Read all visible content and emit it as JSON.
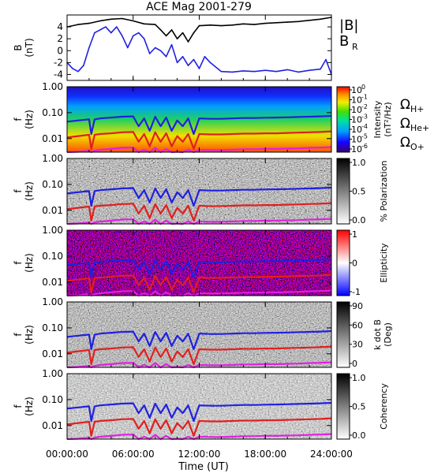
{
  "title": "ACE Mag 2001-279",
  "xaxis": {
    "label": "Time (UT)",
    "ticks": [
      "00:00:00",
      "06:00:00",
      "12:00:00",
      "18:00:00",
      "24:00:00"
    ],
    "tick_hours": [
      0,
      6,
      12,
      18,
      24
    ]
  },
  "freq_axis": {
    "ticks": [
      "1.00",
      "0.10",
      "0.01"
    ],
    "values": [
      1.0,
      0.1,
      0.01
    ]
  },
  "panels": [
    {
      "id": "b-field",
      "ylabel": "B",
      "yunit": "(nT)",
      "yrange": [
        -5,
        6
      ],
      "yticks": [
        "4",
        "2",
        "0",
        "-2",
        "-4"
      ],
      "ytick_values": [
        4,
        2,
        0,
        -2,
        -4
      ],
      "legend": [
        {
          "label": "|B|",
          "color": "#000000"
        },
        {
          "label": "B",
          "sub": "R",
          "color": "#2020e0"
        }
      ]
    },
    {
      "id": "intensity",
      "ylabel": "f",
      "yunit": "(Hz)",
      "colorbar": {
        "title": "Intensity",
        "unit": "(nT²/Hz)",
        "tick_base": "10",
        "tick_exponents": [
          "0",
          "-1",
          "-2",
          "-3",
          "-4",
          "-5",
          "-6"
        ]
      },
      "legend": [
        {
          "symbol": "Ω",
          "sub": "H+",
          "color": "#2020e0"
        },
        {
          "symbol": "Ω",
          "sub": "He+",
          "color": "#e02020"
        },
        {
          "symbol": "Ω",
          "sub": "O+",
          "color": "#e020e0"
        }
      ]
    },
    {
      "id": "polarization",
      "ylabel": "f",
      "yunit": "(Hz)",
      "colorbar": {
        "title": "% Polarization",
        "ticks": [
          "1.0",
          "0.5",
          "0.0"
        ]
      }
    },
    {
      "id": "ellipticity",
      "ylabel": "f",
      "yunit": "(Hz)",
      "colorbar": {
        "title": "Ellipticity",
        "ticks": [
          "1",
          "0",
          "-1"
        ]
      }
    },
    {
      "id": "kdotb",
      "ylabel": "f",
      "yunit": "(Hz)",
      "colorbar": {
        "title": "k dot B",
        "unit": "(Deg)",
        "ticks": [
          "90",
          "60",
          "30",
          "0"
        ]
      }
    },
    {
      "id": "coherency",
      "ylabel": "f",
      "yunit": "(Hz)",
      "colorbar": {
        "title": "Coherency",
        "ticks": [
          "1.0",
          "0.5",
          "0.0"
        ]
      }
    }
  ],
  "colors": {
    "btotal": "#000000",
    "bradial": "#2020e0",
    "h_gyro": "#2020e0",
    "he_gyro": "#e02020",
    "o_gyro": "#e020e0"
  },
  "chart_data": {
    "type": "line",
    "title": "ACE Mag 2001-279",
    "xlabel": "Time (UT)",
    "xlim": [
      0,
      24
    ],
    "series": [
      {
        "name": "|B|",
        "x": [
          0,
          1,
          2,
          3,
          4,
          5,
          6,
          7,
          8,
          8.5,
          9,
          9.5,
          10,
          10.5,
          11,
          11.5,
          12,
          13,
          14,
          15,
          16,
          17,
          18,
          19,
          20,
          21,
          22,
          23,
          24
        ],
        "values": [
          4.0,
          4.4,
          4.6,
          5.0,
          5.3,
          5.4,
          5.0,
          4.5,
          4.4,
          3.5,
          2.5,
          3.5,
          2.0,
          3.0,
          1.5,
          3.0,
          4.2,
          4.3,
          4.2,
          4.3,
          4.5,
          4.4,
          4.6,
          4.7,
          4.8,
          4.9,
          5.1,
          5.3,
          5.6
        ]
      },
      {
        "name": "B_R",
        "x": [
          0,
          0.5,
          1,
          1.5,
          2,
          2.5,
          3,
          3.5,
          4,
          4.5,
          5,
          5.5,
          6,
          6.5,
          7,
          7.5,
          8,
          8.5,
          9,
          9.5,
          10,
          10.5,
          11,
          11.5,
          12,
          12.5,
          13,
          14,
          15,
          16,
          17,
          18,
          19,
          20,
          21,
          22,
          23,
          23.5,
          24
        ],
        "values": [
          -2.0,
          -3.0,
          -3.5,
          -2.5,
          0.5,
          3.0,
          3.5,
          4.0,
          3.0,
          4.0,
          2.5,
          0.5,
          2.5,
          3.0,
          2.0,
          -0.5,
          0.5,
          0.0,
          -1.0,
          1.0,
          -2.0,
          -1.0,
          -2.5,
          -1.5,
          -3.0,
          -1.0,
          -2.0,
          -3.5,
          -3.6,
          -3.4,
          -3.5,
          -3.3,
          -3.5,
          -3.2,
          -3.6,
          -3.3,
          -3.1,
          -1.5,
          -4.0
        ]
      }
    ],
    "frequency_panels": {
      "ylim_hz": [
        0.003,
        1.0
      ],
      "yscale": "log",
      "gyrofrequency_series": [
        {
          "name": "H+",
          "x": [
            0,
            1,
            2,
            2.2,
            2.5,
            3,
            4,
            5,
            6,
            6.5,
            7,
            7.5,
            8,
            8.5,
            9,
            9.5,
            10,
            10.5,
            11,
            11.5,
            12,
            13,
            14,
            15,
            16,
            17,
            18,
            19,
            20,
            21,
            22,
            23,
            24
          ],
          "values": [
            0.045,
            0.05,
            0.055,
            0.015,
            0.055,
            0.06,
            0.065,
            0.07,
            0.072,
            0.03,
            0.06,
            0.02,
            0.07,
            0.03,
            0.065,
            0.02,
            0.05,
            0.03,
            0.06,
            0.015,
            0.06,
            0.058,
            0.058,
            0.06,
            0.062,
            0.062,
            0.064,
            0.065,
            0.066,
            0.068,
            0.07,
            0.072,
            0.075
          ]
        },
        {
          "name": "He+",
          "x": [
            0,
            1,
            2,
            2.2,
            2.5,
            3,
            4,
            5,
            6,
            6.5,
            7,
            7.5,
            8,
            8.5,
            9,
            9.5,
            10,
            10.5,
            11,
            11.5,
            12,
            13,
            14,
            15,
            16,
            17,
            18,
            19,
            20,
            21,
            22,
            23,
            24
          ],
          "values": [
            0.011,
            0.0125,
            0.014,
            0.004,
            0.014,
            0.015,
            0.016,
            0.0175,
            0.018,
            0.0075,
            0.015,
            0.005,
            0.0175,
            0.0075,
            0.016,
            0.005,
            0.0125,
            0.0075,
            0.015,
            0.004,
            0.015,
            0.0145,
            0.0145,
            0.015,
            0.0155,
            0.0155,
            0.016,
            0.016,
            0.0165,
            0.017,
            0.0175,
            0.018,
            0.019
          ]
        },
        {
          "name": "O+",
          "x": [
            0,
            1,
            2,
            2.2,
            2.5,
            3,
            4,
            5,
            6,
            6.5,
            7,
            7.5,
            8,
            8.5,
            9,
            9.5,
            10,
            10.5,
            11,
            11.5,
            12,
            13,
            14,
            15,
            16,
            17,
            18,
            19,
            20,
            21,
            22,
            23,
            24
          ],
          "values": [
            0.0028,
            0.0031,
            0.0034,
            0.001,
            0.0034,
            0.0037,
            0.004,
            0.0044,
            0.0045,
            0.0019,
            0.0037,
            0.0013,
            0.0044,
            0.0019,
            0.004,
            0.0013,
            0.0031,
            0.0019,
            0.0037,
            0.001,
            0.0037,
            0.0036,
            0.0036,
            0.0037,
            0.0039,
            0.0039,
            0.004,
            0.004,
            0.0041,
            0.0042,
            0.0044,
            0.0045,
            0.0047
          ]
        }
      ]
    }
  }
}
